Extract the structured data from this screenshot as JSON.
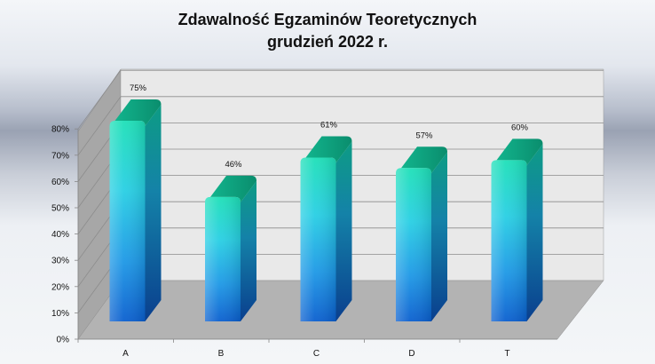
{
  "chart_data": {
    "type": "bar",
    "title": "Zdawalność Egzaminów  Teoretycznych",
    "subtitle": "grudzień 2022 r.",
    "categories": [
      "A",
      "B",
      "C",
      "D",
      "T"
    ],
    "values": [
      75,
      46,
      61,
      57,
      60
    ],
    "data_labels": [
      "75%",
      "46%",
      "61%",
      "57%",
      "60%"
    ],
    "y_ticks": [
      "0%",
      "10%",
      "20%",
      "30%",
      "40%",
      "50%",
      "60%",
      "70%",
      "80%"
    ],
    "ylim": [
      0,
      80
    ],
    "grid": true,
    "legend": "none",
    "style": "3d-cylinder",
    "colors": {
      "bar_top": "#1ed8b6",
      "bar_mid": "#27c8e0",
      "bar_bottom": "#0a6fd6",
      "bar_cap": "#0fa37f",
      "back_wall": "#eaeaea",
      "side_wall": "#a8a8a8",
      "floor": "#b4b4b4"
    }
  }
}
